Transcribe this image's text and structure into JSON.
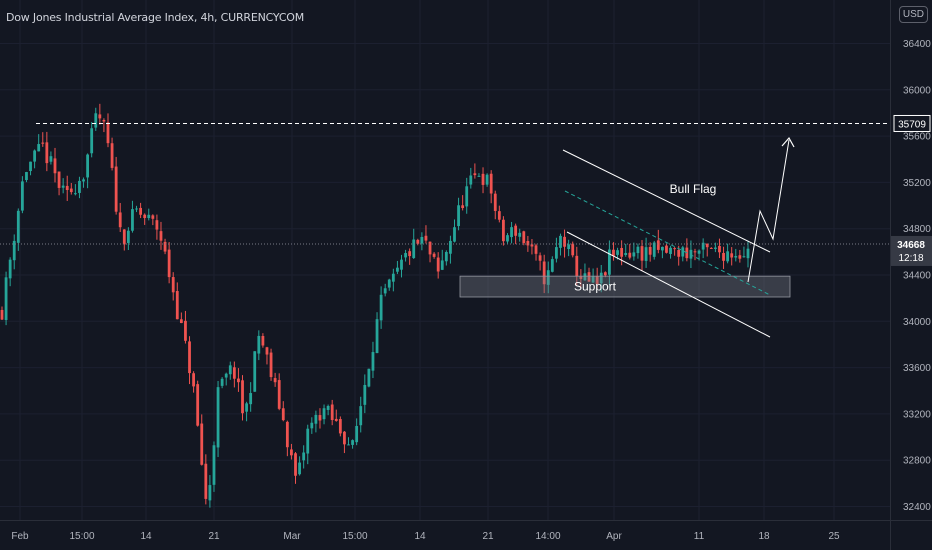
{
  "header": {
    "title": "Dow Jones Industrial Average Index, 4h, CURRENCYCOM",
    "currency": "USD"
  },
  "colors": {
    "background": "#131722",
    "up": "#26a69a",
    "down": "#ef5350",
    "text": "#b2b5be",
    "line": "#ffffff"
  },
  "price_tag": {
    "price": "34668",
    "countdown": "12:18"
  },
  "chart_data": {
    "type": "candlestick",
    "title": "Dow Jones Industrial Average Index, 4h, CURRENCYCOM",
    "ylim": [
      32250,
      36700
    ],
    "y_ticks": [
      32400,
      32800,
      33200,
      33600,
      34000,
      34400,
      34800,
      35200,
      35600,
      36000,
      36400
    ],
    "x_ticks": [
      "Feb",
      "15:00",
      "14",
      "21",
      "Mar",
      "15:00",
      "14",
      "21",
      "14:00",
      "Apr",
      "11",
      "18",
      "25"
    ],
    "resistance_level": {
      "value": 35709,
      "label": "35709"
    },
    "current_price": 34668,
    "close_path": [
      [
        0,
        34100
      ],
      [
        0.03,
        35300
      ],
      [
        0.055,
        35500
      ],
      [
        0.085,
        35050
      ],
      [
        0.11,
        35300
      ],
      [
        0.128,
        35800
      ],
      [
        0.14,
        35600
      ],
      [
        0.16,
        34700
      ],
      [
        0.18,
        34950
      ],
      [
        0.21,
        34800
      ],
      [
        0.23,
        34250
      ],
      [
        0.255,
        33500
      ],
      [
        0.275,
        32350
      ],
      [
        0.29,
        33400
      ],
      [
        0.31,
        33600
      ],
      [
        0.325,
        33150
      ],
      [
        0.345,
        33900
      ],
      [
        0.375,
        33200
      ],
      [
        0.395,
        32600
      ],
      [
        0.41,
        33050
      ],
      [
        0.43,
        33250
      ],
      [
        0.455,
        33050
      ],
      [
        0.47,
        32900
      ],
      [
        0.49,
        33600
      ],
      [
        0.51,
        34200
      ],
      [
        0.525,
        34350
      ],
      [
        0.545,
        34600
      ],
      [
        0.565,
        34700
      ],
      [
        0.585,
        34400
      ],
      [
        0.605,
        34800
      ],
      [
        0.62,
        35100
      ],
      [
        0.64,
        35300
      ],
      [
        0.655,
        35150
      ],
      [
        0.67,
        34700
      ],
      [
        0.69,
        34800
      ],
      [
        0.705,
        34650
      ],
      [
        0.73,
        34350
      ],
      [
        0.75,
        34750
      ],
      [
        0.765,
        34500
      ],
      [
        0.78,
        34350
      ],
      [
        0.8,
        34300
      ],
      [
        0.815,
        34550
      ],
      [
        0.83,
        34600
      ]
    ],
    "annotations": [
      {
        "text": "Bull Flag",
        "type": "channel"
      },
      {
        "text": "Support",
        "type": "zone",
        "range": [
          34210,
          34390
        ]
      }
    ]
  }
}
